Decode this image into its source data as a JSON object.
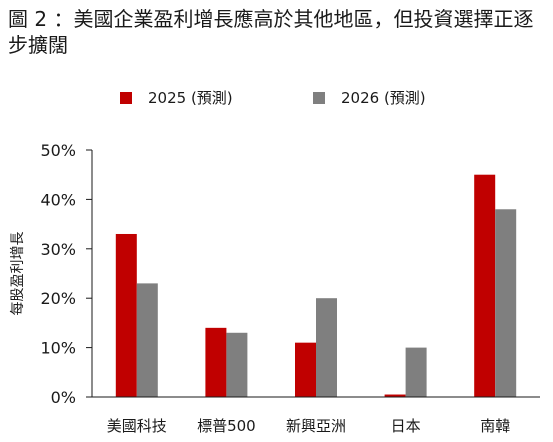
{
  "title": "圖 2 ：美國企業盈利增長應高於其他地區，但投資選擇正逐步擴闊",
  "chart_data": {
    "type": "bar",
    "categories": [
      "美國科技",
      "標普500",
      "新興亞洲",
      "日本",
      "南韓"
    ],
    "series": [
      {
        "name": "2025 (預測)",
        "color": "#c00000",
        "values": [
          33,
          14,
          11,
          0.5,
          45
        ]
      },
      {
        "name": "2026 (預測)",
        "color": "#7f7f7f",
        "values": [
          23,
          13,
          20,
          10,
          38
        ]
      }
    ],
    "ylabel": "每股盈利增長",
    "ylim": [
      0,
      50
    ],
    "yticks": [
      "0%",
      "10%",
      "20%",
      "30%",
      "40%",
      "50%"
    ],
    "legend_position": "top",
    "grid": false
  }
}
